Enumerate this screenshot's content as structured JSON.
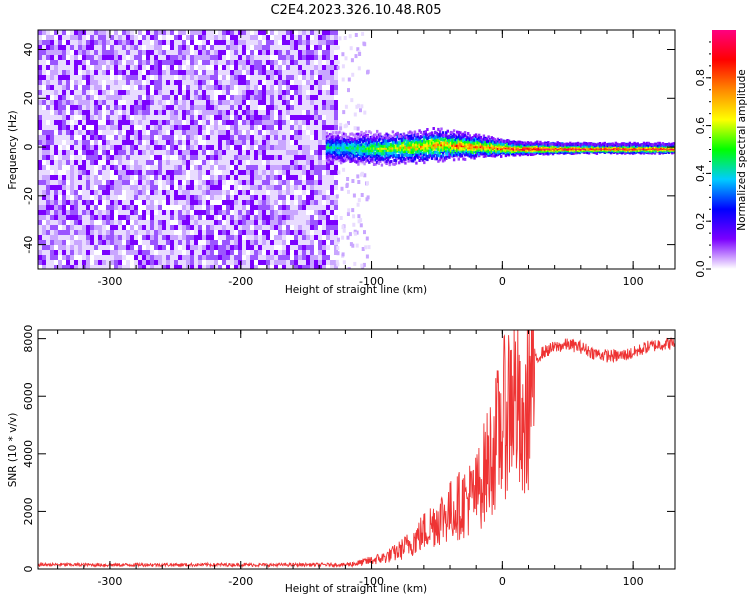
{
  "figure": {
    "title": "C2E4.2023.326.10.48.R05"
  },
  "chart_data": [
    {
      "type": "heatmap",
      "xlabel": "Height of straight line (km)",
      "ylabel": "Frequency (Hz)",
      "xlim": [
        -355,
        132
      ],
      "ylim": [
        -50,
        48
      ],
      "xticks": [
        -300,
        -200,
        -100,
        0,
        100
      ],
      "yticks": [
        -40,
        -20,
        0,
        20,
        40
      ],
      "noise_region": {
        "x_range": [
          -355,
          -128
        ],
        "y_range": [
          -50,
          48
        ]
      },
      "signal_track": [
        {
          "x": -135,
          "y": 0.0,
          "halfwidth": 4.5,
          "amplitude": 0.45
        },
        {
          "x": -110,
          "y": -0.5,
          "halfwidth": 5.0,
          "amplitude": 0.5
        },
        {
          "x": -90,
          "y": -0.5,
          "halfwidth": 5.0,
          "amplitude": 0.6
        },
        {
          "x": -70,
          "y": 0.0,
          "halfwidth": 5.0,
          "amplitude": 0.7
        },
        {
          "x": -50,
          "y": 1.0,
          "halfwidth": 5.0,
          "amplitude": 0.75
        },
        {
          "x": -30,
          "y": 0.5,
          "halfwidth": 4.0,
          "amplitude": 0.8
        },
        {
          "x": -10,
          "y": 0.0,
          "halfwidth": 3.0,
          "amplitude": 0.85
        },
        {
          "x": 10,
          "y": -0.5,
          "halfwidth": 2.0,
          "amplitude": 0.95
        },
        {
          "x": 60,
          "y": -0.5,
          "halfwidth": 1.5,
          "amplitude": 0.97
        },
        {
          "x": 100,
          "y": -0.5,
          "halfwidth": 1.5,
          "amplitude": 0.95
        },
        {
          "x": 132,
          "y": -0.5,
          "halfwidth": 1.5,
          "amplitude": 0.95
        }
      ],
      "colorbar": {
        "label": "Normalized spectral amplitude",
        "range": [
          0,
          1
        ],
        "ticks": [
          0.0,
          0.2,
          0.4,
          0.6,
          0.8
        ],
        "tick_labels": [
          "0.0",
          "0.2",
          "0.4",
          "0.6",
          "0.8"
        ],
        "colors": [
          "#ffffff",
          "#7b00ff",
          "#0000ff",
          "#00ccff",
          "#00ff00",
          "#ffff00",
          "#ff8800",
          "#ff0000",
          "#ff0080"
        ]
      }
    },
    {
      "type": "line",
      "xlabel": "Height of straight line (km)",
      "ylabel": "SNR (10 * v/v)",
      "xlim": [
        -355,
        132
      ],
      "ylim": [
        0,
        8300
      ],
      "xticks": [
        -300,
        -200,
        -100,
        0,
        100
      ],
      "yticks": [
        0,
        2000,
        4000,
        6000,
        8000
      ],
      "series": [
        {
          "color": "#ee3333",
          "x": [
            -355,
            -330,
            -300,
            -270,
            -240,
            -210,
            -180,
            -150,
            -120,
            -110,
            -100,
            -90,
            -80,
            -70,
            -60,
            -50,
            -40,
            -30,
            -20,
            -15,
            -10,
            -5,
            0,
            5,
            8,
            12,
            15,
            20,
            25,
            30,
            40,
            50,
            60,
            70,
            80,
            90,
            100,
            110,
            120,
            132
          ],
          "y": [
            150,
            150,
            140,
            150,
            145,
            150,
            140,
            150,
            150,
            200,
            300,
            400,
            600,
            900,
            1300,
            1700,
            2000,
            2300,
            2600,
            3200,
            3800,
            4400,
            5000,
            5800,
            6200,
            5600,
            4000,
            6000,
            7200,
            7500,
            7700,
            7800,
            7700,
            7500,
            7400,
            7400,
            7500,
            7700,
            7800,
            7850
          ]
        }
      ]
    }
  ]
}
